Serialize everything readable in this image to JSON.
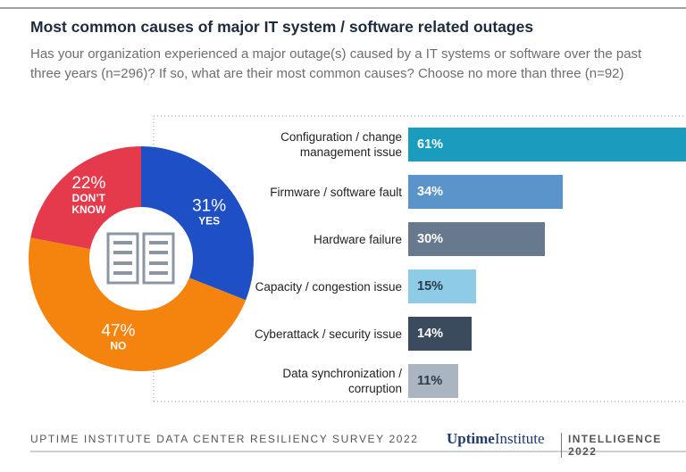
{
  "title": "Most common causes of major IT system / software related outages",
  "subtitle": "Has your organization experienced a major outage(s) caused by a IT systems or software over the past three years (n=296)? If so, what are their most common causes? Choose no more than three (n=92)",
  "chart_data": [
    {
      "type": "donut",
      "categories": [
        "YES",
        "NO",
        "DON’T KNOW"
      ],
      "values": [
        31,
        47,
        22
      ],
      "value_labels": [
        "31%",
        "47%",
        "22%"
      ],
      "colors": [
        "#1f4fc4",
        "#f5840f",
        "#e43a4c"
      ]
    },
    {
      "type": "hbar",
      "categories": [
        "Configuration / change management issue",
        "Firmware / software fault",
        "Hardware failure",
        "Capacity / congestion issue",
        "Cyberattack / security issue",
        "Data synchronization / corruption"
      ],
      "values": [
        61,
        34,
        30,
        15,
        14,
        11
      ],
      "value_labels": [
        "61%",
        "34%",
        "30%",
        "15%",
        "14%",
        "11%"
      ],
      "colors": [
        "#1a9cbf",
        "#5a94cb",
        "#67798c",
        "#8ecbe7",
        "#3c4a5e",
        "#abb4c1"
      ]
    }
  ],
  "footer": {
    "source": "UPTIME INSTITUTE DATA CENTER RESILIENCY SURVEY 2022",
    "brand_bold": "Uptime",
    "brand_regular": "Institute",
    "tag": "INTELLIGENCE 2022"
  }
}
